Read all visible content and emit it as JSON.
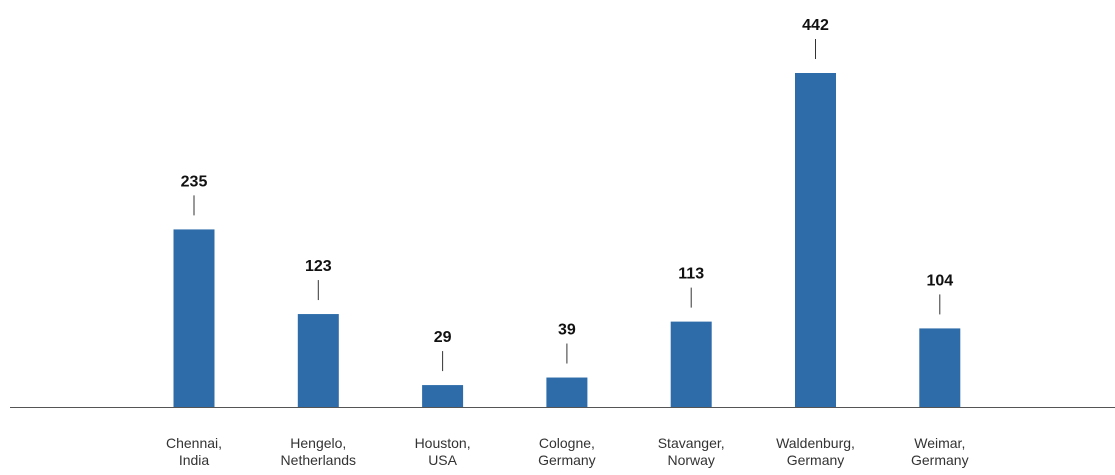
{
  "chart_data": {
    "type": "bar",
    "title": "",
    "xlabel": "",
    "ylabel": "",
    "categories": [
      [
        "Chennai,",
        "India"
      ],
      [
        "Hengelo,",
        "Netherlands"
      ],
      [
        "Houston,",
        "USA"
      ],
      [
        "Cologne,",
        "Germany"
      ],
      [
        "Stavanger,",
        "Norway"
      ],
      [
        "Waldenburg,",
        "Germany"
      ],
      [
        "Weimar,",
        "Germany"
      ]
    ],
    "values": [
      235,
      123,
      29,
      39,
      113,
      442,
      104
    ],
    "ylim": [
      0,
      442
    ],
    "grid": false,
    "legend": "none",
    "data_labels": true,
    "colors": {
      "bar": "#2d6ca9",
      "axis": "#555555",
      "leader": "#333333"
    }
  }
}
